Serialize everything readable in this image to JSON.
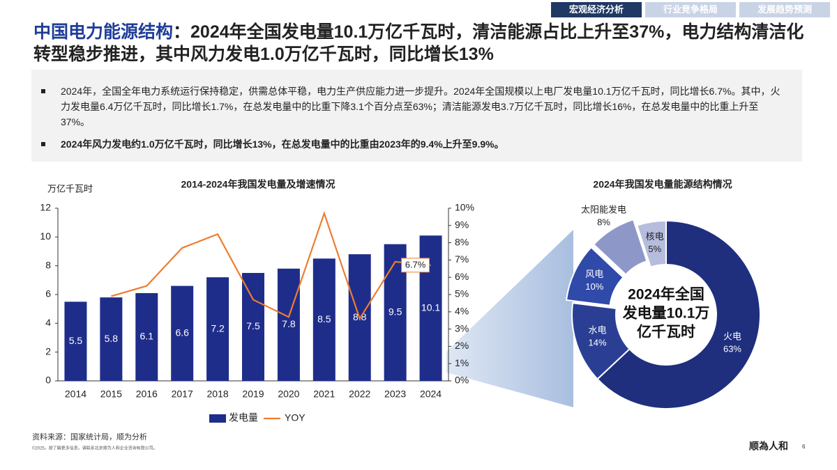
{
  "nav": {
    "tabs": [
      "宏观经济分析",
      "行业竞争格局",
      "发展趋势预测"
    ]
  },
  "header": {
    "title_highlight": "中国电力能源结构",
    "title": "：2024年全国发电量10.1万亿千瓦时，清洁能源占比上升至37%，电力结构清洁化转型稳步推进，其中风力发电1.0万亿千瓦时，同比增长13%"
  },
  "bullets": [
    "2024年，全国全年电力系统运行保持稳定，供需总体平稳，电力生产供应能力进一步提升。2024年全国规模以上电厂发电量10.1万亿千瓦时，同比增长6.7%。其中，火力发电量6.4万亿千瓦时，同比增长1.7%，在总发电量中的比重下降3.1个百分点至63%；清洁能源发电3.7万亿千瓦时，同比增长16%，在总发电量中的比重上升至37%。",
    "2024年风力发电约1.0万亿千瓦时，同比增长13%，在总发电量中的比重由2023年的9.4%上升至9.9%。"
  ],
  "chart_data": [
    {
      "type": "bar",
      "title": "2014-2024年我国发电量及增速情况",
      "y_label": "万亿千瓦时",
      "categories": [
        "2014",
        "2015",
        "2016",
        "2017",
        "2018",
        "2019",
        "2020",
        "2021",
        "2022",
        "2023",
        "2024"
      ],
      "series": [
        {
          "name": "发电量",
          "color": "#1f2d8a",
          "values": [
            5.5,
            5.8,
            6.1,
            6.6,
            7.2,
            7.5,
            7.8,
            8.5,
            8.8,
            9.5,
            10.1
          ]
        },
        {
          "name": "YOY",
          "color": "#ed7d31",
          "type": "line",
          "axis": "y2",
          "values": [
            null,
            4.9,
            5.5,
            7.7,
            8.5,
            4.7,
            3.7,
            9.7,
            3.6,
            6.9,
            6.7
          ],
          "value_labels": [
            null,
            null,
            null,
            null,
            null,
            null,
            null,
            null,
            null,
            null,
            "6.7%"
          ]
        }
      ],
      "ylim": [
        0,
        12
      ],
      "yticks": [
        0,
        2,
        4,
        6,
        8,
        10,
        12
      ],
      "y2lim": [
        0,
        10
      ],
      "y2ticks": [
        {
          "value": 0,
          "label": "0%"
        },
        {
          "value": 1,
          "label": "1%"
        },
        {
          "value": 2,
          "label": "2%"
        },
        {
          "value": 3,
          "label": "3%"
        },
        {
          "value": 4,
          "label": "4%"
        },
        {
          "value": 5,
          "label": "5%"
        },
        {
          "value": 6,
          "label": "6%"
        },
        {
          "value": 7,
          "label": "7%"
        },
        {
          "value": 8,
          "label": "8%"
        },
        {
          "value": 9,
          "label": "9%"
        },
        {
          "value": 10,
          "label": "10%"
        }
      ],
      "legend": "bottom"
    },
    {
      "type": "pie",
      "title": "2024年我国发电量能源结构情况",
      "donut": true,
      "center_text": [
        "2024年全国",
        "发电量10.1万",
        "亿千瓦时"
      ],
      "categories": [
        "火电",
        "水电",
        "风电",
        "太阳能发电",
        "核电"
      ],
      "values": [
        63,
        14,
        10,
        8,
        5
      ],
      "value_labels": [
        "63%",
        "14%",
        "10%",
        "8%",
        "5%"
      ],
      "colors": [
        "#1f2f7e",
        "#2a3f94",
        "#2f4aa8",
        "#8e98c8",
        "#b6bddc"
      ]
    }
  ],
  "footer": {
    "source": "资料来源：国家统计局，顺为分析",
    "copyright": "©2025。欲了解更多信息，请联系北京顺为人和企业咨询有限公司。",
    "logo": "顺為人和",
    "page": "6"
  }
}
